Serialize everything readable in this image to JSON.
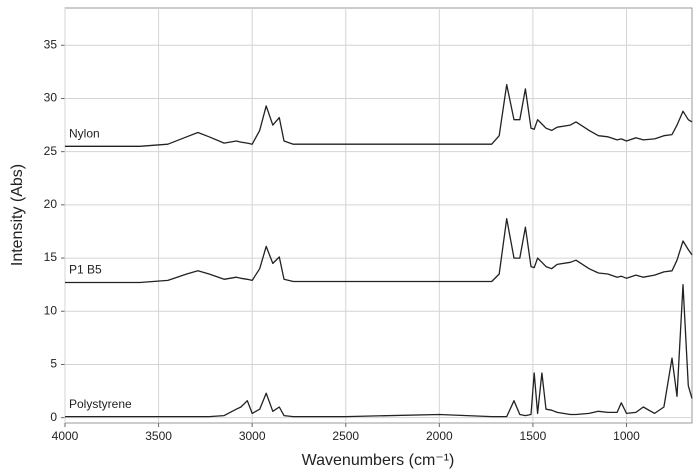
{
  "chart_data": {
    "type": "line",
    "x_label": "Wavenumbers (cm⁻¹)",
    "y_label": "Intensity (Abs)",
    "x": [
      4000,
      3600,
      3450,
      3350,
      3290,
      3230,
      3150,
      3085,
      3060,
      3026,
      3000,
      2960,
      2925,
      2890,
      2855,
      2830,
      2780,
      2500,
      2000,
      1720,
      1680,
      1640,
      1601,
      1570,
      1540,
      1510,
      1493,
      1475,
      1452,
      1430,
      1400,
      1370,
      1300,
      1270,
      1200,
      1150,
      1100,
      1050,
      1028,
      1000,
      950,
      910,
      850,
      800,
      757,
      730,
      698,
      670,
      650
    ],
    "series": [
      {
        "name": "Nylon",
        "color": "#222222",
        "values": [
          25.5,
          25.5,
          25.7,
          26.4,
          26.8,
          26.4,
          25.8,
          26.0,
          25.9,
          25.8,
          25.7,
          27.0,
          29.3,
          27.5,
          28.2,
          26.0,
          25.7,
          25.7,
          25.7,
          25.7,
          26.5,
          31.3,
          28.0,
          28.0,
          30.9,
          27.2,
          27.1,
          28.0,
          27.6,
          27.2,
          27.0,
          27.3,
          27.5,
          27.8,
          27.0,
          26.5,
          26.4,
          26.1,
          26.2,
          26.0,
          26.3,
          26.1,
          26.2,
          26.5,
          26.6,
          27.5,
          28.8,
          28.0,
          27.8
        ]
      },
      {
        "name": "P1 B5",
        "color": "#222222",
        "values": [
          12.7,
          12.7,
          12.9,
          13.5,
          13.8,
          13.5,
          13.0,
          13.2,
          13.1,
          13.0,
          12.9,
          14.0,
          16.1,
          14.5,
          15.1,
          13.0,
          12.8,
          12.8,
          12.8,
          12.8,
          13.5,
          18.7,
          15.0,
          15.0,
          17.9,
          14.2,
          14.1,
          15.0,
          14.6,
          14.2,
          14.0,
          14.4,
          14.6,
          14.8,
          14.0,
          13.6,
          13.5,
          13.2,
          13.3,
          13.1,
          13.4,
          13.2,
          13.4,
          13.7,
          13.8,
          14.8,
          16.6,
          15.8,
          15.3
        ]
      },
      {
        "name": "Polystyrene",
        "color": "#222222",
        "values": [
          0.1,
          0.1,
          0.1,
          0.1,
          0.1,
          0.1,
          0.2,
          0.8,
          1.0,
          1.6,
          0.4,
          0.8,
          2.3,
          0.6,
          1.0,
          0.2,
          0.1,
          0.1,
          0.3,
          0.1,
          0.1,
          0.1,
          1.6,
          0.3,
          0.2,
          0.3,
          4.2,
          0.4,
          4.2,
          0.8,
          0.7,
          0.5,
          0.3,
          0.3,
          0.4,
          0.6,
          0.5,
          0.5,
          1.4,
          0.4,
          0.5,
          1.0,
          0.4,
          1.0,
          5.6,
          2.0,
          12.5,
          3.0,
          1.8
        ]
      }
    ],
    "xlim": [
      4000,
      650
    ],
    "ylim": [
      -0.5,
      38.5
    ],
    "xticks": [
      4000,
      3500,
      3000,
      2500,
      2000,
      1500,
      1000
    ],
    "yticks": [
      0,
      5,
      10,
      15,
      20,
      25,
      30,
      35
    ],
    "grid": true
  }
}
